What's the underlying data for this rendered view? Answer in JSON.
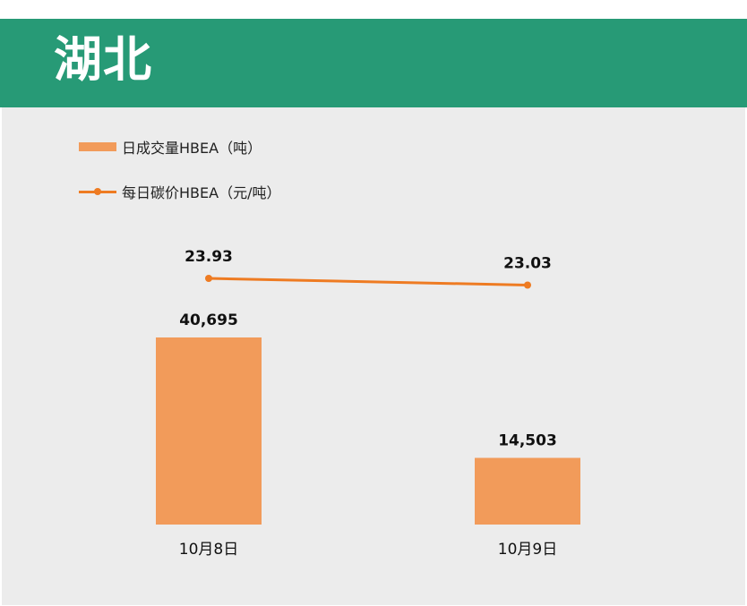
{
  "header": {
    "title": "湖北"
  },
  "colors": {
    "header_bg": "#279a76",
    "panel_bg": "#ececec",
    "bar": "#f29b5a",
    "line": "#ee7b22"
  },
  "chart_data": {
    "type": "bar",
    "categories": [
      "10月8日",
      "10月9日"
    ],
    "series": [
      {
        "name": "日成交量HBEA（吨）",
        "type": "bar",
        "values": [
          40695,
          14503
        ],
        "labels": [
          "40,695",
          "14,503"
        ]
      },
      {
        "name": "每日碳价HBEA（元/吨）",
        "type": "line",
        "values": [
          23.93,
          23.03
        ],
        "labels": [
          "23.93",
          "23.03"
        ]
      }
    ],
    "legend_position": "top-left",
    "grid": false
  }
}
